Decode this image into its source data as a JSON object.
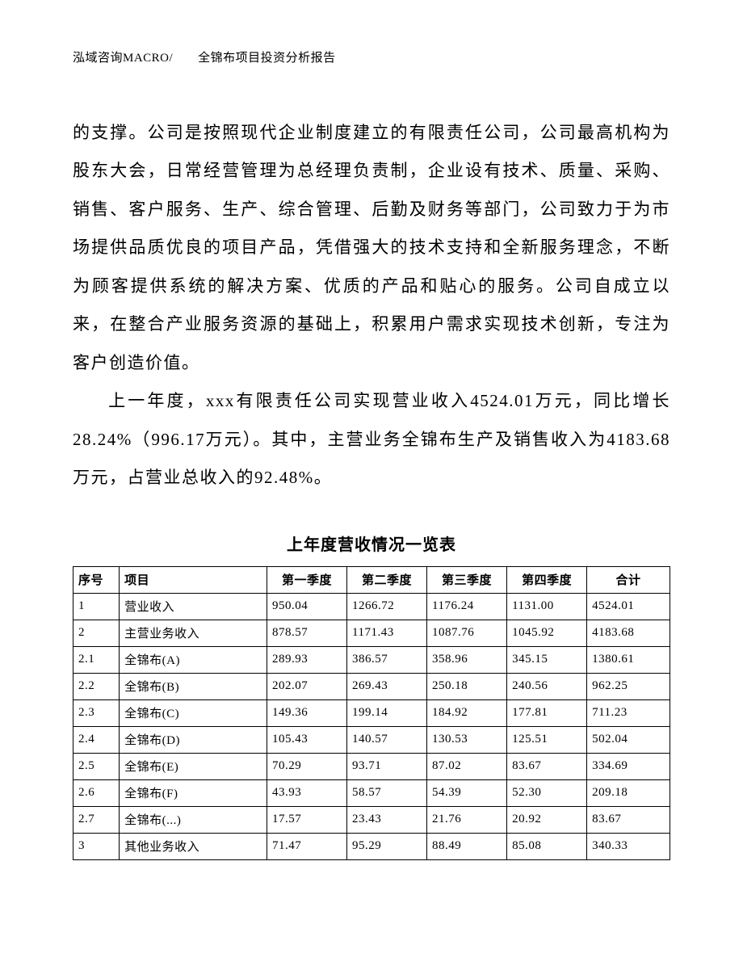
{
  "header": "泓域咨询MACRO/　　全锦布项目投资分析报告",
  "para1": "的支撑。公司是按照现代企业制度建立的有限责任公司，公司最高机构为股东大会，日常经营管理为总经理负责制，企业设有技术、质量、采购、销售、客户服务、生产、综合管理、后勤及财务等部门，公司致力于为市场提供品质优良的项目产品，凭借强大的技术支持和全新服务理念，不断为顾客提供系统的解决方案、优质的产品和贴心的服务。公司自成立以来，在整合产业服务资源的基础上，积累用户需求实现技术创新，专注为客户创造价值。",
  "para2": "上一年度，xxx有限责任公司实现营业收入4524.01万元，同比增长28.24%（996.17万元）。其中，主营业务全锦布生产及销售收入为4183.68万元，占营业总收入的92.48%。",
  "table": {
    "title": "上年度营收情况一览表",
    "columns": [
      "序号",
      "项目",
      "第一季度",
      "第二季度",
      "第三季度",
      "第四季度",
      "合计"
    ],
    "rows": [
      [
        "1",
        "营业收入",
        "950.04",
        "1266.72",
        "1176.24",
        "1131.00",
        "4524.01"
      ],
      [
        "2",
        "主营业务收入",
        "878.57",
        "1171.43",
        "1087.76",
        "1045.92",
        "4183.68"
      ],
      [
        "2.1",
        "全锦布(A)",
        "289.93",
        "386.57",
        "358.96",
        "345.15",
        "1380.61"
      ],
      [
        "2.2",
        "全锦布(B)",
        "202.07",
        "269.43",
        "250.18",
        "240.56",
        "962.25"
      ],
      [
        "2.3",
        "全锦布(C)",
        "149.36",
        "199.14",
        "184.92",
        "177.81",
        "711.23"
      ],
      [
        "2.4",
        "全锦布(D)",
        "105.43",
        "140.57",
        "130.53",
        "125.51",
        "502.04"
      ],
      [
        "2.5",
        "全锦布(E)",
        "70.29",
        "93.71",
        "87.02",
        "83.67",
        "334.69"
      ],
      [
        "2.6",
        "全锦布(F)",
        "43.93",
        "58.57",
        "54.39",
        "52.30",
        "209.18"
      ],
      [
        "2.7",
        "全锦布(...)",
        "17.57",
        "23.43",
        "21.76",
        "20.92",
        "83.67"
      ],
      [
        "3",
        "其他业务收入",
        "71.47",
        "95.29",
        "88.49",
        "85.08",
        "340.33"
      ]
    ]
  }
}
